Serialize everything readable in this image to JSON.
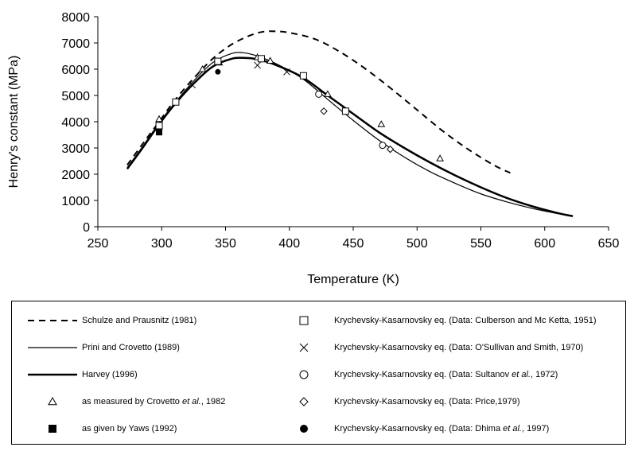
{
  "chart_data": {
    "type": "line",
    "xlabel": "Temperature (K)",
    "ylabel": "Henry's constant (MPa)",
    "xlim": [
      250,
      650
    ],
    "ylim": [
      0,
      8000
    ],
    "xticks": [
      250,
      300,
      350,
      400,
      450,
      500,
      550,
      600,
      650
    ],
    "yticks": [
      0,
      1000,
      2000,
      3000,
      4000,
      5000,
      6000,
      7000,
      8000
    ],
    "grid": false,
    "legend_position": "bottom",
    "series": [
      {
        "name": "Schulze and Prausnitz (1981)",
        "type": "line",
        "style": "dashed",
        "x": [
          273,
          285,
          298,
          310,
          325,
          340,
          355,
          370,
          380,
          390,
          400,
          420,
          440,
          460,
          480,
          500,
          520,
          540,
          560,
          573
        ],
        "y": [
          2350,
          3150,
          4000,
          4800,
          5650,
          6400,
          6950,
          7300,
          7430,
          7440,
          7390,
          7150,
          6650,
          6000,
          5250,
          4450,
          3650,
          2950,
          2350,
          2050
        ]
      },
      {
        "name": "Prini and Crovetto (1989)",
        "type": "line",
        "style": "thin",
        "x": [
          273,
          285,
          298,
          310,
          325,
          340,
          355,
          365,
          375,
          390,
          410,
          430,
          450,
          470,
          490,
          510,
          530,
          550,
          570,
          590,
          610,
          622
        ],
        "y": [
          2250,
          3050,
          3950,
          4700,
          5550,
          6250,
          6600,
          6620,
          6500,
          6200,
          5650,
          4850,
          4050,
          3300,
          2650,
          2100,
          1650,
          1250,
          950,
          700,
          500,
          400
        ]
      },
      {
        "name": "Harvey (1996)",
        "type": "line",
        "style": "thick",
        "x": [
          273,
          285,
          298,
          310,
          325,
          340,
          355,
          365,
          375,
          390,
          410,
          430,
          450,
          470,
          490,
          510,
          530,
          550,
          570,
          590,
          610,
          622
        ],
        "y": [
          2200,
          3000,
          3900,
          4650,
          5450,
          6100,
          6400,
          6430,
          6380,
          6150,
          5700,
          5000,
          4300,
          3600,
          3000,
          2450,
          1950,
          1500,
          1100,
          780,
          520,
          400
        ]
      },
      {
        "name": "as measured by Crovetto et al., 1982",
        "type": "scatter",
        "marker": "triangle-open",
        "x": [
          298,
          332,
          345,
          375,
          385,
          430,
          472,
          518
        ],
        "y": [
          4100,
          6000,
          6250,
          6450,
          6320,
          5050,
          3900,
          2600
        ]
      },
      {
        "name": "as given by Yaws (1992)",
        "type": "scatter",
        "marker": "square-filled",
        "x": [
          298
        ],
        "y": [
          3600
        ]
      },
      {
        "name": "Krychevsky-Kasarnovsky eq. (Data: Culberson and Mc Ketta, 1951)",
        "type": "scatter",
        "marker": "square-open",
        "x": [
          298,
          311,
          344,
          378,
          411,
          444
        ],
        "y": [
          3850,
          4750,
          6300,
          6400,
          5750,
          4400
        ]
      },
      {
        "name": "Krychevsky-Kasarnovsky eq. (Data: O'Sullivan and Smith, 1970)",
        "type": "scatter",
        "marker": "x",
        "x": [
          324,
          375,
          398
        ],
        "y": [
          5400,
          6150,
          5900
        ]
      },
      {
        "name": "Krychevsky-Kasarnovsky eq. (Data: Sultanov et al., 1972)",
        "type": "scatter",
        "marker": "circle-open",
        "x": [
          423,
          473
        ],
        "y": [
          5050,
          3100
        ]
      },
      {
        "name": "Krychevsky-Kasarnovsky eq. (Data: Price,1979)",
        "type": "scatter",
        "marker": "diamond-open",
        "x": [
          427,
          479
        ],
        "y": [
          4400,
          2950
        ]
      },
      {
        "name": "Krychevsky-Kasarnovsky eq. (Data: Dhima et al., 1997)",
        "type": "scatter",
        "marker": "circle-filled",
        "x": [
          344
        ],
        "y": [
          5900
        ]
      }
    ]
  },
  "legend": {
    "items": [
      {
        "symbol": "dashed",
        "pre": "Schulze and Prausnitz (1981)",
        "em": "",
        "post": ""
      },
      {
        "symbol": "thin",
        "pre": "Prini and Crovetto (1989)",
        "em": "",
        "post": ""
      },
      {
        "symbol": "thick",
        "pre": "Harvey (1996)",
        "em": "",
        "post": ""
      },
      {
        "symbol": "triangle-open",
        "pre": "as measured by Crovetto ",
        "em": "et al.",
        "post": ", 1982"
      },
      {
        "symbol": "square-filled",
        "pre": "as given by Yaws (1992)",
        "em": "",
        "post": ""
      },
      {
        "symbol": "square-open",
        "pre": "Krychevsky-Kasarnovsky eq. (Data: Culberson and Mc Ketta, 1951)",
        "em": "",
        "post": ""
      },
      {
        "symbol": "x",
        "pre": "Krychevsky-Kasarnovsky eq. (Data: O'Sullivan and Smith, 1970)",
        "em": "",
        "post": ""
      },
      {
        "symbol": "circle-open",
        "pre": "Krychevsky-Kasarnovsky eq. (Data: Sultanov ",
        "em": "et al.",
        "post": ", 1972)"
      },
      {
        "symbol": "diamond-open",
        "pre": "Krychevsky-Kasarnovsky eq. (Data: Price,1979)",
        "em": "",
        "post": ""
      },
      {
        "symbol": "circle-filled",
        "pre": "Krychevsky-Kasarnovsky eq. (Data: Dhima ",
        "em": "et al.",
        "post": ", 1997)"
      }
    ]
  }
}
